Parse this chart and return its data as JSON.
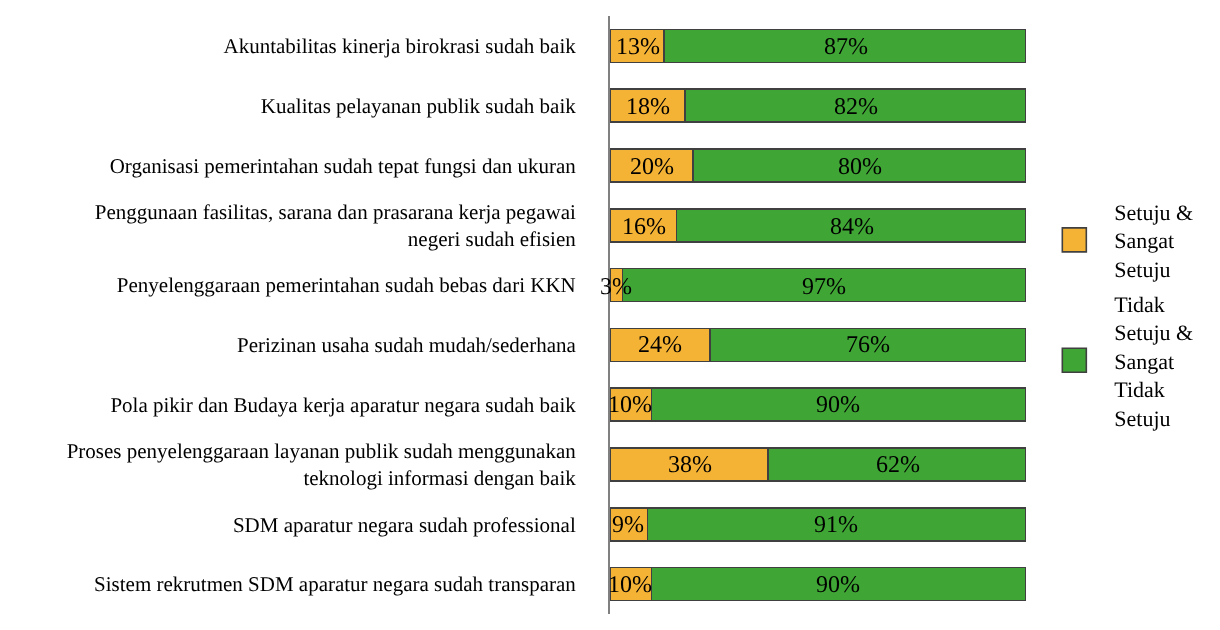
{
  "chart_data": {
    "type": "bar",
    "orientation": "horizontal",
    "stacked": true,
    "categories": [
      "Akuntabilitas kinerja birokrasi sudah baik",
      "Kualitas pelayanan publik sudah baik",
      "Organisasi pemerintahan sudah tepat fungsi dan ukuran",
      "Penggunaan fasilitas, sarana dan prasarana kerja pegawai negeri sudah efisien",
      "Penyelenggaraan pemerintahan sudah bebas dari KKN",
      "Perizinan usaha sudah mudah/sederhana",
      "Pola pikir dan Budaya kerja aparatur negara sudah baik",
      "Proses penyelenggaraan layanan publik sudah menggunakan teknologi informasi dengan baik",
      "SDM aparatur negara sudah professional",
      "Sistem rekrutmen SDM aparatur negara sudah transparan"
    ],
    "series": [
      {
        "name": "Setuju & Sangat Setuju",
        "color": "#f5b335",
        "values": [
          13,
          18,
          20,
          16,
          3,
          24,
          10,
          38,
          9,
          10
        ],
        "value_labels": [
          "13%",
          "18%",
          "20%",
          "16%",
          "3%",
          "24%",
          "10%",
          "38%",
          "9%",
          "10%"
        ]
      },
      {
        "name": "Tidak Setuju & Sangat Tidak Setuju",
        "color": "#3fa535",
        "values": [
          87,
          82,
          80,
          84,
          97,
          76,
          90,
          62,
          91,
          90
        ],
        "value_labels": [
          "87%",
          "82%",
          "80%",
          "84%",
          "97%",
          "76%",
          "90%",
          "62%",
          "91%",
          "90%"
        ]
      }
    ],
    "xlim": [
      0,
      100
    ],
    "tick_labels": "y",
    "legend": "right"
  }
}
